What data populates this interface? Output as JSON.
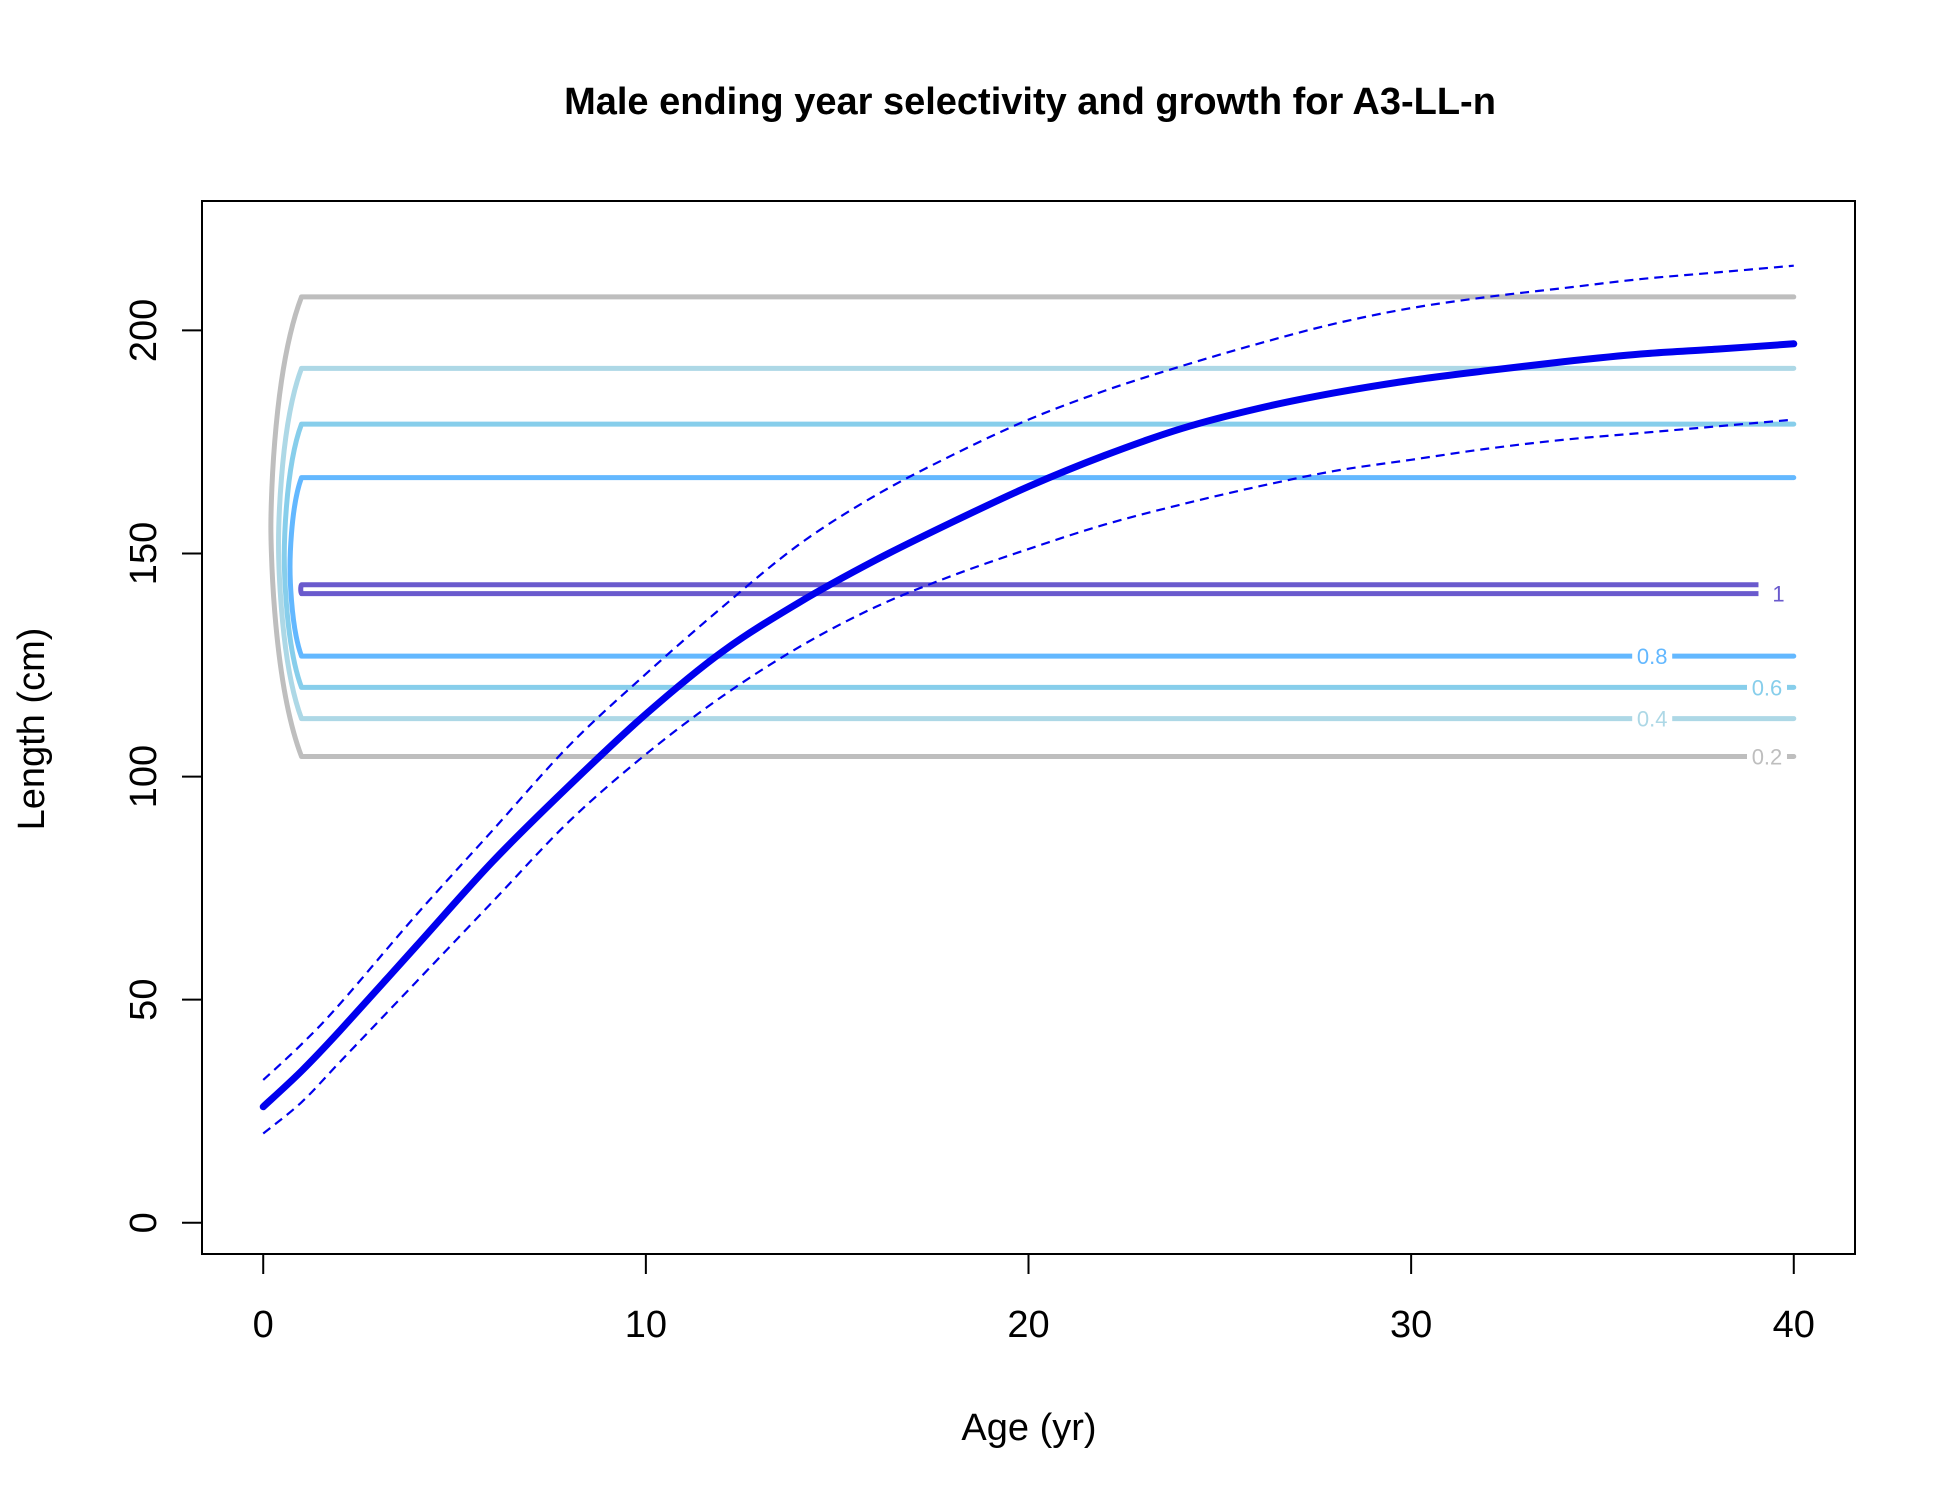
{
  "chart_data": {
    "type": "line",
    "title": "Male ending year selectivity and growth for A3-LL-n",
    "xlabel": "Age (yr)",
    "ylabel": "Length (cm)",
    "xlim": [
      -1.6,
      41.6
    ],
    "ylim": [
      -7,
      229
    ],
    "x_ticks": [
      0,
      10,
      20,
      30,
      40
    ],
    "x_tick_labels": [
      "0",
      "10",
      "20",
      "30",
      "40"
    ],
    "y_ticks": [
      0,
      50,
      100,
      150,
      200
    ],
    "y_tick_labels": [
      "0",
      "50",
      "100",
      "150",
      "200"
    ],
    "grid": false,
    "legend": "none",
    "growth": {
      "color": "#0000ee",
      "age": [
        0,
        1,
        2,
        4,
        6,
        8,
        10,
        12,
        14,
        16,
        18,
        20,
        22,
        24,
        26,
        28,
        30,
        32,
        34,
        36,
        38,
        40
      ],
      "mean_length": [
        26,
        34,
        43,
        62,
        81,
        98,
        114,
        128,
        139,
        148.5,
        157,
        165,
        172,
        178,
        182.5,
        186,
        188.8,
        191,
        193,
        194.7,
        195.8,
        197
      ],
      "upper_length": [
        32,
        40,
        49,
        69,
        88,
        107,
        123,
        138,
        152,
        163,
        172,
        180,
        186.5,
        192,
        197,
        201.5,
        205,
        207.5,
        209.5,
        211.5,
        213,
        214.5
      ],
      "lower_length": [
        20,
        27,
        36,
        54,
        72,
        90,
        105,
        118,
        129,
        138,
        145,
        151,
        156.5,
        161,
        165,
        168.5,
        171,
        173.5,
        175.5,
        177,
        178.5,
        180
      ]
    },
    "selectivity_contours": [
      {
        "level": "0.2",
        "color": "#bebebe",
        "upper": 207.5,
        "lower": 104.5,
        "bulge": 0.8,
        "label_y": 104.5,
        "label_x": 39.3
      },
      {
        "level": "0.4",
        "color": "#add8e6",
        "upper": 191.5,
        "lower": 113,
        "bulge": 0.6,
        "label_y": 113,
        "label_x": 36.3
      },
      {
        "level": "0.6",
        "color": "#87ceeb",
        "upper": 179,
        "lower": 120,
        "bulge": 0.45,
        "label_y": 120,
        "label_x": 39.3
      },
      {
        "level": "0.8",
        "color": "#63b8ff",
        "upper": 167,
        "lower": 127,
        "bulge": 0.3,
        "label_y": 127,
        "label_x": 36.3
      },
      {
        "level": "1",
        "color": "#6a5acd",
        "upper": 143,
        "lower": 141,
        "bulge": 0.02,
        "label_y": 141,
        "label_x": 39.6
      }
    ]
  }
}
